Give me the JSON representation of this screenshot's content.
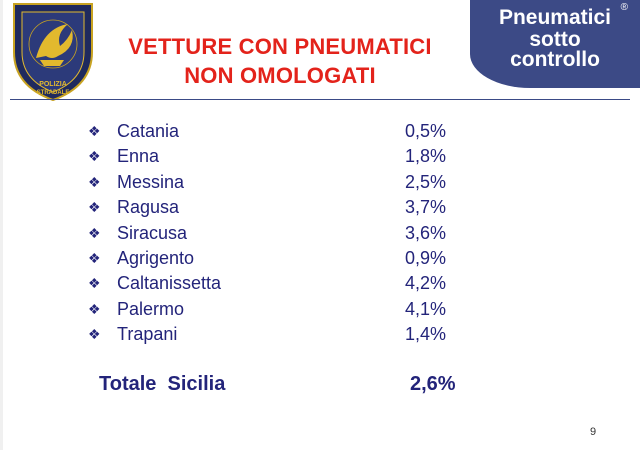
{
  "slide": {
    "title_line1": "VETTURE CON PNEUMATICI",
    "title_line2": "NON OMOLOGATI",
    "badge": {
      "line1": "Pneumatici",
      "line2": "sotto",
      "line3": "controllo",
      "mark": "®"
    },
    "logo_text": "POLIZIA STRADALE",
    "bullet_glyph": "❖",
    "rows": [
      {
        "city": "Catania",
        "pct": "0,5%"
      },
      {
        "city": "Enna",
        "pct": "1,8%"
      },
      {
        "city": "Messina",
        "pct": "2,5%"
      },
      {
        "city": "Ragusa",
        "pct": "3,7%"
      },
      {
        "city": "Siracusa",
        "pct": "3,6%"
      },
      {
        "city": "Agrigento",
        "pct": "0,9%"
      },
      {
        "city": "Caltanissetta",
        "pct": "4,2%"
      },
      {
        "city": "Palermo",
        "pct": "4,1%"
      },
      {
        "city": "Trapani",
        "pct": "1,4%"
      }
    ],
    "total_label": "Totale  Sicilia",
    "total_value": "2,6%",
    "page_number": "9"
  },
  "colors": {
    "title": "#e3231b",
    "text": "#23247a",
    "badge_bg": "#3c4a86",
    "shield": "#1f2a5e",
    "gold": "#d9b12a"
  }
}
